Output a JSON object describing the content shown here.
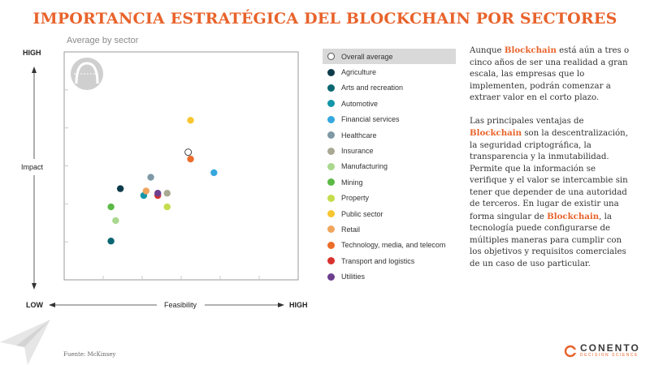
{
  "title": "IMPORTANCIA ESTRATÉGICA DEL BLOCKCHAIN POR SECTORES",
  "subtitle": "Average by sector",
  "chart_data": {
    "type": "scatter",
    "title": "Average by sector",
    "xlabel": "Feasibility",
    "ylabel": "Impact",
    "x_low_label": "LOW",
    "x_high_label": "HIGH",
    "y_high_label": "HIGH",
    "xlim": [
      0,
      100
    ],
    "ylim": [
      0,
      100
    ],
    "grid": true,
    "legend_position": "right",
    "series": [
      {
        "name": "Overall average",
        "color": "#ffffff",
        "hollow": true,
        "x": 53,
        "y": 56
      },
      {
        "name": "Agriculture",
        "color": "#0d3b4a",
        "x": 24,
        "y": 40
      },
      {
        "name": "Arts and recreation",
        "color": "#0b6672",
        "x": 20,
        "y": 17
      },
      {
        "name": "Automotive",
        "color": "#1496aa",
        "x": 34,
        "y": 37
      },
      {
        "name": "Financial services",
        "color": "#36a7de",
        "x": 64,
        "y": 47
      },
      {
        "name": "Healthcare",
        "color": "#7f98a6",
        "x": 37,
        "y": 45
      },
      {
        "name": "Insurance",
        "color": "#a9a892",
        "x": 44,
        "y": 38
      },
      {
        "name": "Manufacturing",
        "color": "#a9d88e",
        "x": 22,
        "y": 26
      },
      {
        "name": "Mining",
        "color": "#5cb946",
        "x": 20,
        "y": 32
      },
      {
        "name": "Property",
        "color": "#c5dc4c",
        "x": 44,
        "y": 32
      },
      {
        "name": "Public sector",
        "color": "#f7c630",
        "x": 54,
        "y": 70
      },
      {
        "name": "Retail",
        "color": "#f0a55c",
        "x": 35,
        "y": 39
      },
      {
        "name": "Technology, media, and telecom",
        "color": "#ec6c2a",
        "x": 54,
        "y": 53
      },
      {
        "name": "Transport and logistics",
        "color": "#d8322c",
        "x": 40,
        "y": 37
      },
      {
        "name": "Utilities",
        "color": "#6c3e8f",
        "x": 40,
        "y": 38
      }
    ]
  },
  "text": {
    "p1_pre": "Aunque ",
    "p1_hl": "Blockchain",
    "p1_post": " está aún a tres o cinco años de ser una realidad a gran escala, las empresas que lo implementen, podrán comenzar a extraer valor en el corto plazo.",
    "p2_pre": "Las principales ventajas de ",
    "p2_hl1": "Blockchain",
    "p2_mid": " son la descentralización, la seguridad criptográfica, la transparencia y la inmutabilidad. Permite que la información se verifique y el valor se intercambie sin tener que depender de una autoridad de terceros. En lugar de existir una forma singular de ",
    "p2_hl2": "Blockchain",
    "p2_post": ", la tecnología puede configurarse de múltiples maneras para cumplir con los objetivos y requisitos comerciales de un caso de uso particular."
  },
  "source": "Fuente: McKinsey",
  "brand": {
    "name": "CONENTO",
    "tagline": "DECISION SCIENCE",
    "accent": "#e8632b"
  }
}
